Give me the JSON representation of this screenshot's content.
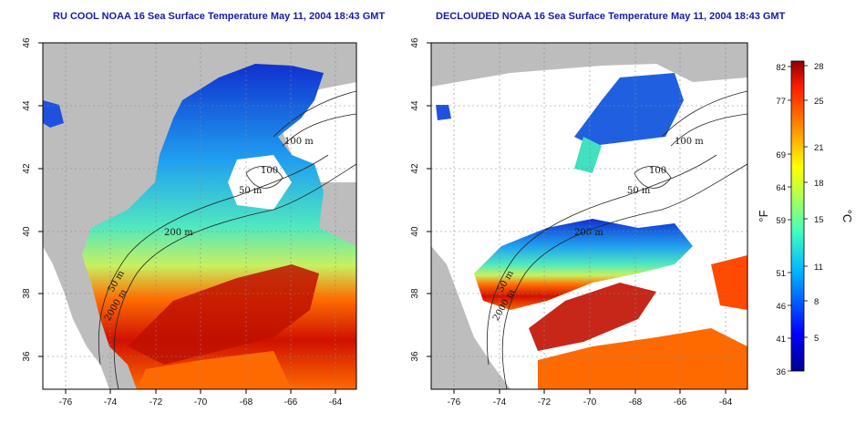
{
  "titles": {
    "left": "RU COOL NOAA 16 Sea Surface Temperature May 11, 2004 18:43 GMT",
    "right": "DECLOUDED NOAA 16 Sea Surface Temperature May 11, 2004 18:43 GMT"
  },
  "axes": {
    "lon_ticks": [
      "-76",
      "-74",
      "-72",
      "-70",
      "-68",
      "-66",
      "-64"
    ],
    "lat_ticks": [
      "46",
      "44",
      "42",
      "40",
      "38",
      "36"
    ]
  },
  "contours": [
    "100 m",
    "100",
    "50 m",
    "200 m",
    "50 m",
    "2000 m"
  ],
  "colorbar": {
    "unit_f": "°F",
    "unit_c": "°C",
    "fahrenheit_ticks": [
      "82",
      "77",
      "69",
      "64",
      "59",
      "51",
      "46",
      "41",
      "36"
    ],
    "celsius_ticks": [
      "28",
      "25",
      "21",
      "18",
      "15",
      "11",
      "8",
      "5"
    ]
  },
  "colors": {
    "land": "#bdbdbd",
    "title": "#1a1aa8"
  }
}
